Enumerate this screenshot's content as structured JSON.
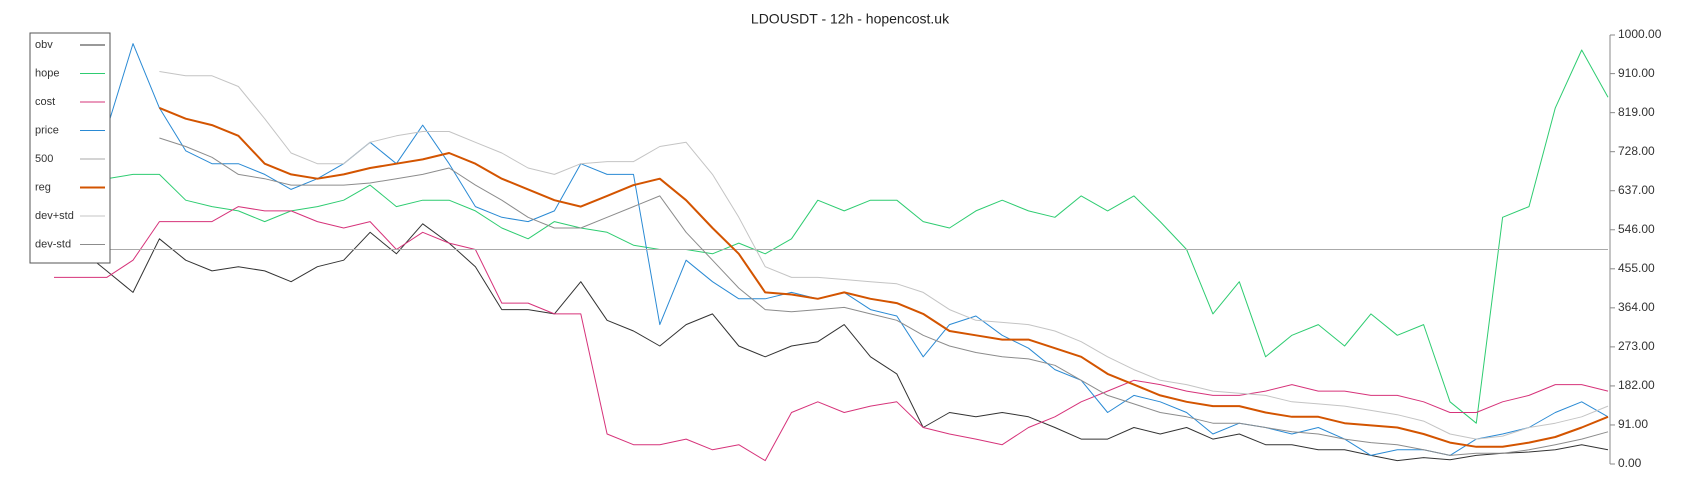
{
  "chart_data": {
    "type": "line",
    "title": "LDOUSDT - 12h - hopencost.uk",
    "ylim": [
      0,
      1000
    ],
    "yticks": [
      {
        "value": 0,
        "label": "0.00"
      },
      {
        "value": 91,
        "label": "91.00"
      },
      {
        "value": 182,
        "label": "182.00"
      },
      {
        "value": 273,
        "label": "273.00"
      },
      {
        "value": 364,
        "label": "364.00"
      },
      {
        "value": 455,
        "label": "455.00"
      },
      {
        "value": 546,
        "label": "546.00"
      },
      {
        "value": 637,
        "label": "637.00"
      },
      {
        "value": 728,
        "label": "728.00"
      },
      {
        "value": 819,
        "label": "819.00"
      },
      {
        "value": 910,
        "label": "910.00"
      },
      {
        "value": 1000,
        "label": "1000.00"
      }
    ],
    "legend": "upper left",
    "series": [
      {
        "name": "obv",
        "color": "#333333",
        "width": 1,
        "values": [
          475,
          500,
          450,
          400,
          525,
          475,
          450,
          460,
          450,
          425,
          460,
          475,
          540,
          490,
          560,
          515,
          460,
          360,
          360,
          350,
          425,
          335,
          310,
          275,
          325,
          350,
          275,
          250,
          275,
          285,
          325,
          250,
          210,
          85,
          120,
          110,
          120,
          110,
          85,
          58,
          58,
          85,
          70,
          85,
          58,
          70,
          45,
          45,
          33,
          33,
          20,
          8,
          15,
          10,
          20,
          25,
          28,
          33,
          45,
          33
        ]
      },
      {
        "name": "hope",
        "color": "#2ecc71",
        "width": 1,
        "values": [
          665,
          665,
          665,
          675,
          675,
          615,
          600,
          590,
          565,
          590,
          600,
          615,
          650,
          600,
          615,
          615,
          590,
          550,
          525,
          565,
          550,
          540,
          510,
          500,
          500,
          490,
          515,
          490,
          525,
          615,
          590,
          615,
          615,
          565,
          550,
          590,
          615,
          590,
          575,
          625,
          590,
          625,
          565,
          500,
          350,
          425,
          250,
          300,
          325,
          275,
          350,
          300,
          325,
          145,
          95,
          575,
          600,
          830,
          965,
          855
        ]
      },
      {
        "name": "cost",
        "color": "#d6337a",
        "width": 1,
        "values": [
          435,
          435,
          435,
          475,
          565,
          565,
          565,
          600,
          590,
          590,
          565,
          550,
          565,
          500,
          540,
          515,
          500,
          375,
          375,
          350,
          350,
          70,
          45,
          45,
          58,
          33,
          45,
          8,
          120,
          145,
          120,
          135,
          145,
          85,
          70,
          58,
          45,
          85,
          110,
          145,
          170,
          195,
          185,
          170,
          160,
          160,
          170,
          185,
          170,
          170,
          160,
          160,
          145,
          120,
          120,
          145,
          160,
          185,
          185,
          170
        ]
      },
      {
        "name": "price",
        "color": "#2a8ad4",
        "width": 1,
        "values": [
          780,
          765,
          780,
          980,
          830,
          730,
          700,
          700,
          675,
          640,
          665,
          700,
          750,
          700,
          790,
          700,
          600,
          575,
          565,
          590,
          700,
          675,
          675,
          325,
          475,
          425,
          385,
          385,
          400,
          385,
          400,
          360,
          345,
          250,
          325,
          345,
          300,
          270,
          220,
          195,
          120,
          160,
          145,
          120,
          70,
          95,
          85,
          70,
          85,
          58,
          20,
          33,
          33,
          20,
          58,
          70,
          85,
          120,
          145,
          110
        ]
      },
      {
        "name": "500",
        "color": "#aaaaaa",
        "width": 1,
        "values": [
          500,
          500,
          500,
          500,
          500,
          500,
          500,
          500,
          500,
          500,
          500,
          500,
          500,
          500,
          500,
          500,
          500,
          500,
          500,
          500,
          500,
          500,
          500,
          500,
          500,
          500,
          500,
          500,
          500,
          500,
          500,
          500,
          500,
          500,
          500,
          500,
          500,
          500,
          500,
          500,
          500,
          500,
          500,
          500,
          500,
          500,
          500,
          500,
          500,
          500,
          500,
          500,
          500,
          500,
          500,
          500,
          500,
          500,
          500,
          500
        ]
      },
      {
        "name": "reg",
        "color": "#d35400",
        "width": 2,
        "values": [
          null,
          null,
          null,
          null,
          830,
          805,
          790,
          765,
          700,
          675,
          665,
          675,
          690,
          700,
          710,
          725,
          700,
          665,
          640,
          615,
          600,
          625,
          650,
          665,
          615,
          550,
          490,
          400,
          395,
          385,
          400,
          385,
          375,
          350,
          310,
          300,
          290,
          290,
          270,
          250,
          210,
          185,
          160,
          145,
          135,
          135,
          120,
          110,
          110,
          95,
          90,
          85,
          70,
          50,
          40,
          40,
          50,
          63,
          85,
          110
        ]
      },
      {
        "name": "dev+std",
        "color": "#c4c4c4",
        "width": 1,
        "values": [
          null,
          null,
          null,
          null,
          915,
          905,
          905,
          880,
          805,
          725,
          700,
          700,
          750,
          765,
          775,
          775,
          750,
          725,
          690,
          675,
          700,
          705,
          705,
          740,
          750,
          675,
          575,
          460,
          435,
          435,
          430,
          425,
          420,
          400,
          360,
          335,
          330,
          325,
          310,
          285,
          250,
          220,
          195,
          185,
          170,
          165,
          160,
          145,
          140,
          135,
          125,
          115,
          100,
          70,
          58,
          65,
          85,
          95,
          110,
          135
        ]
      },
      {
        "name": "dev-std",
        "color": "#8c8c8c",
        "width": 1,
        "values": [
          null,
          null,
          null,
          null,
          760,
          740,
          715,
          675,
          665,
          650,
          650,
          650,
          655,
          665,
          675,
          690,
          650,
          615,
          575,
          550,
          550,
          575,
          600,
          625,
          540,
          475,
          410,
          360,
          355,
          360,
          365,
          350,
          335,
          300,
          275,
          260,
          250,
          245,
          230,
          195,
          160,
          140,
          120,
          110,
          95,
          95,
          85,
          75,
          70,
          58,
          50,
          45,
          33,
          20,
          25,
          25,
          33,
          45,
          58,
          75
        ]
      }
    ]
  }
}
